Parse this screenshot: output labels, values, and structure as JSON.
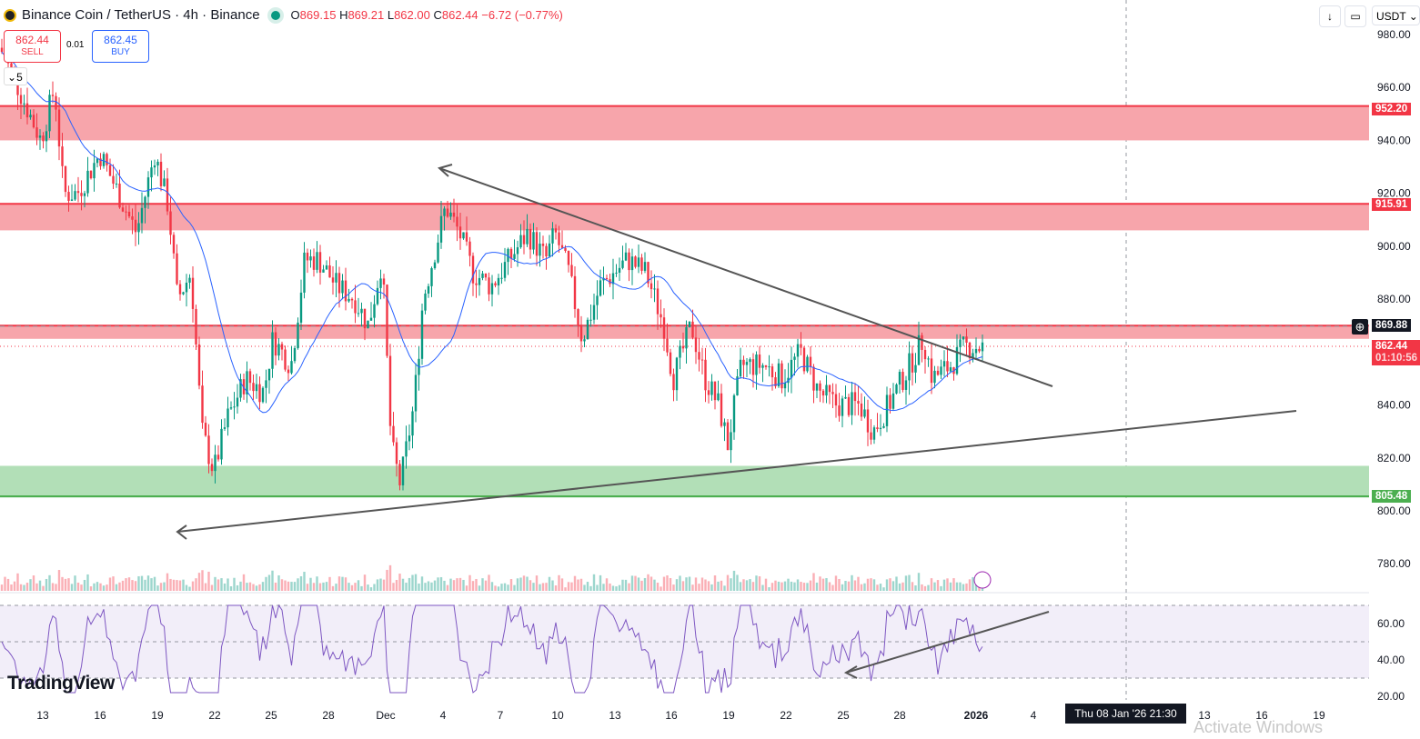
{
  "header": {
    "title": "Binance Coin / TetherUS · 4h · Binance",
    "o_label": "O",
    "o": "869.15",
    "h_label": "H",
    "h": "869.21",
    "l_label": "L",
    "l": "862.00",
    "c_label": "C",
    "c": "862.44",
    "change": "−6.72 (−0.77%)"
  },
  "trade": {
    "sell_price": "862.44",
    "sell_label": "SELL",
    "buy_price": "862.45",
    "buy_label": "BUY",
    "lot": "0.01",
    "indicator_count": "5"
  },
  "toolbar": {
    "currency": "USDT"
  },
  "price_labels": {
    "r1": "952.20",
    "r2": "915.91",
    "crosshair": "869.88",
    "last": "862.44",
    "countdown": "01:10:56",
    "support": "805.48"
  },
  "time_label": "Thu 08 Jan '26   21:30",
  "brand": "TradingView",
  "watermark": "Activate Windows",
  "colors": {
    "up": "#089981",
    "down": "#f23645",
    "ma": "#2962ff",
    "rsi": "#7e57c2"
  },
  "chart_data": {
    "type": "candlestick",
    "y_ticks": [
      980,
      960,
      940,
      920,
      900,
      880,
      840,
      820,
      800,
      780
    ],
    "rsi_ticks": [
      60,
      40,
      20
    ],
    "x_ticks": [
      "13",
      "16",
      "19",
      "22",
      "25",
      "28",
      "Dec",
      "4",
      "7",
      "10",
      "13",
      "16",
      "19",
      "22",
      "25",
      "28",
      "2026",
      "4",
      "13",
      "16",
      "19"
    ],
    "resistance_zones": [
      [
        940,
        953
      ],
      [
        906,
        916
      ],
      [
        865,
        870
      ]
    ],
    "support_zone": [
      805,
      817
    ],
    "path": [
      [
        0,
        975
      ],
      [
        20,
        960
      ],
      [
        45,
        940
      ],
      [
        60,
        960
      ],
      [
        70,
        920
      ],
      [
        85,
        920
      ],
      [
        110,
        935
      ],
      [
        130,
        920
      ],
      [
        150,
        905
      ],
      [
        170,
        935
      ],
      [
        185,
        915
      ],
      [
        195,
        880
      ],
      [
        210,
        890
      ],
      [
        222,
        830
      ],
      [
        235,
        815
      ],
      [
        250,
        835
      ],
      [
        270,
        850
      ],
      [
        290,
        845
      ],
      [
        300,
        865
      ],
      [
        320,
        855
      ],
      [
        335,
        895
      ],
      [
        350,
        895
      ],
      [
        370,
        885
      ],
      [
        390,
        880
      ],
      [
        405,
        870
      ],
      [
        420,
        895
      ],
      [
        430,
        825
      ],
      [
        440,
        810
      ],
      [
        455,
        840
      ],
      [
        465,
        880
      ],
      [
        490,
        915
      ],
      [
        505,
        905
      ],
      [
        520,
        890
      ],
      [
        540,
        885
      ],
      [
        560,
        895
      ],
      [
        580,
        905
      ],
      [
        600,
        895
      ],
      [
        610,
        905
      ],
      [
        625,
        890
      ],
      [
        640,
        865
      ],
      [
        660,
        885
      ],
      [
        690,
        895
      ],
      [
        710,
        890
      ],
      [
        730,
        870
      ],
      [
        740,
        850
      ],
      [
        760,
        870
      ],
      [
        775,
        850
      ],
      [
        790,
        840
      ],
      [
        800,
        825
      ],
      [
        815,
        855
      ],
      [
        840,
        855
      ],
      [
        860,
        850
      ],
      [
        880,
        860
      ],
      [
        900,
        845
      ],
      [
        920,
        840
      ],
      [
        945,
        840
      ],
      [
        960,
        830
      ],
      [
        980,
        842
      ],
      [
        1000,
        855
      ],
      [
        1015,
        865
      ],
      [
        1025,
        850
      ],
      [
        1045,
        855
      ],
      [
        1060,
        862
      ],
      [
        1080,
        862
      ]
    ]
  }
}
